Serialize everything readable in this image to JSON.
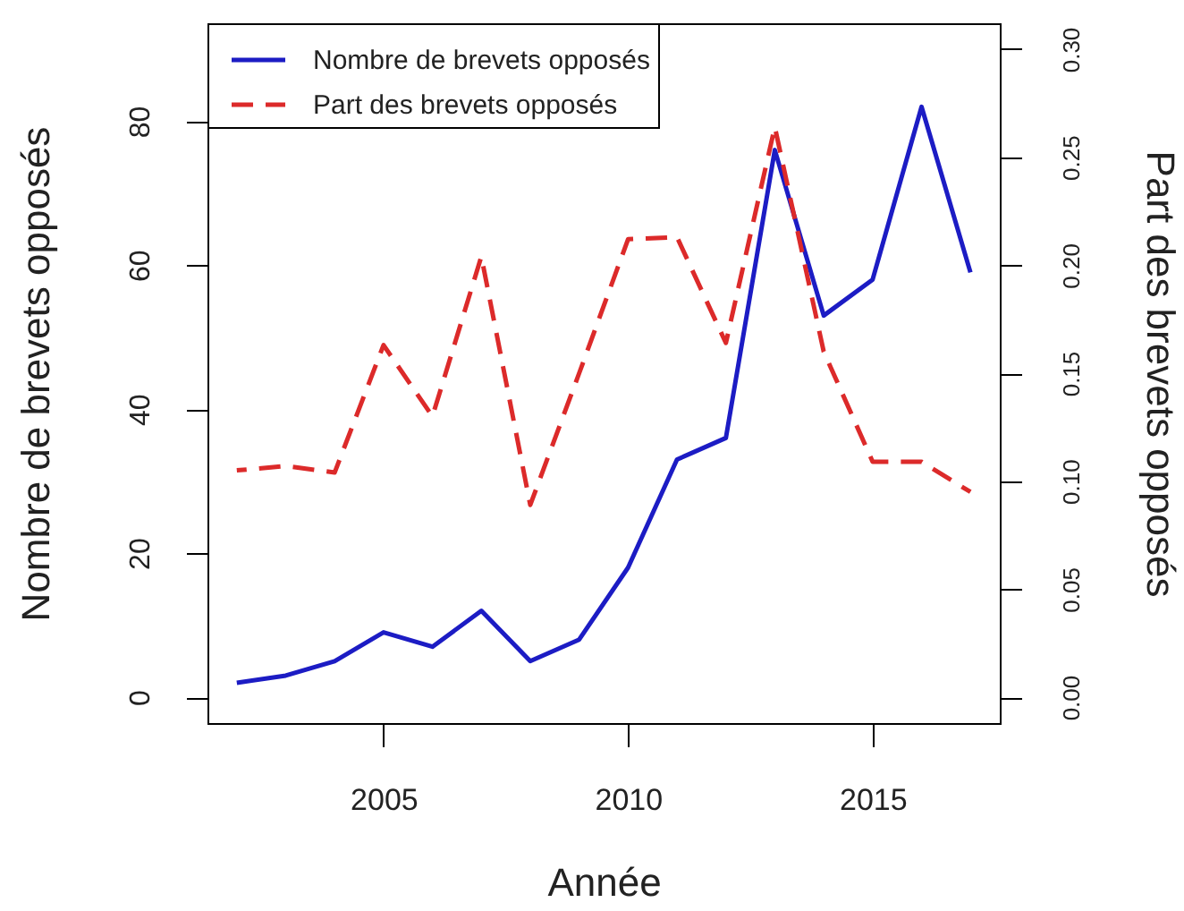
{
  "chart_data": {
    "type": "line",
    "xlabel": "Année",
    "ylabel": "Nombre de brevets opposés",
    "y2label": "Part des brevets opposés",
    "x": [
      2002,
      2003,
      2004,
      2005,
      2006,
      2007,
      2008,
      2009,
      2010,
      2011,
      2012,
      2013,
      2014,
      2015,
      2016,
      2017
    ],
    "series": [
      {
        "name": "Nombre de brevets opposés",
        "color": "#1c1cc4",
        "line_style": "solid",
        "values": [
          2,
          3,
          5,
          9,
          7,
          12,
          5,
          8,
          18,
          33,
          36,
          76,
          53,
          58,
          82,
          59
        ]
      },
      {
        "name": "Part des brevets opposés",
        "color": "#dc2a2a",
        "line_style": "dashed",
        "axis": "y2",
        "values": [
          0.105,
          0.107,
          0.104,
          0.163,
          0.13,
          0.204,
          0.089,
          0.15,
          0.212,
          0.213,
          0.164,
          0.264,
          0.16,
          0.109,
          0.109,
          0.095
        ]
      }
    ],
    "xlim": [
      2001.4,
      2017.6
    ],
    "xticks": [
      2005,
      2010,
      2015
    ],
    "ylim": [
      -3.6,
      93.6
    ],
    "yticks": [
      0,
      20,
      40,
      60,
      80
    ],
    "y2lim": [
      -0.012,
      0.312
    ],
    "y2ticks": [
      {
        "value": 0,
        "label": "0.00"
      },
      0.05,
      {
        "value": 0.1,
        "label": "0.10"
      },
      0.15,
      {
        "value": 0.2,
        "label": "0.20"
      },
      0.25,
      {
        "value": 0.3,
        "label": "0.30"
      }
    ],
    "legend": "top left"
  }
}
